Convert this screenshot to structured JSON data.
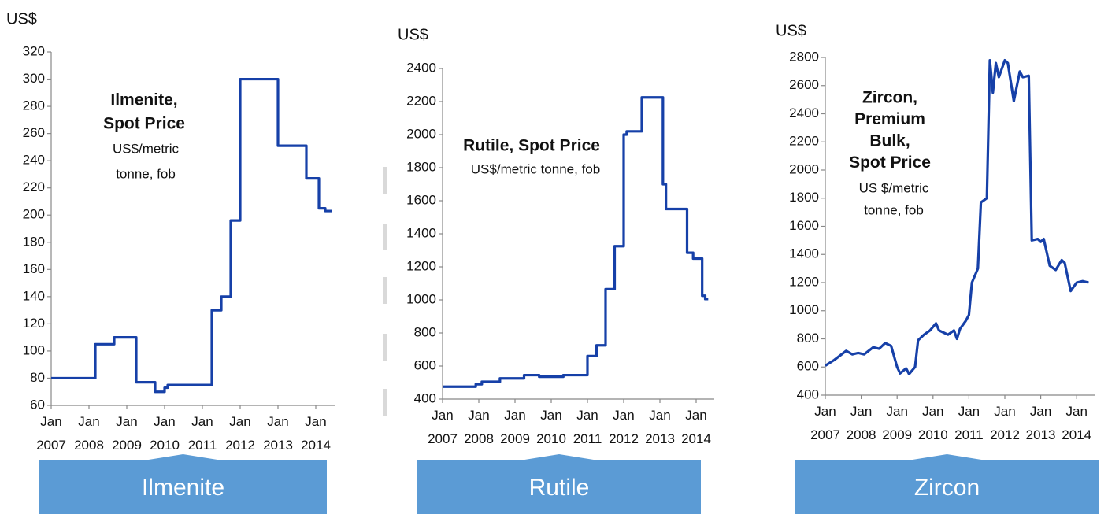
{
  "chart_data": [
    {
      "type": "line",
      "step": true,
      "unit_label": "US$",
      "annotation": {
        "title": [
          "Ilmenite,",
          "Spot Price"
        ],
        "subtitle": [
          "US$/metric",
          "tonne, fob"
        ]
      },
      "caption": "Ilmenite",
      "xlim": [
        "2007-01",
        "2014-07"
      ],
      "xticks": [
        {
          "value": "2007-01",
          "label": "Jan 2007"
        },
        {
          "value": "2008-01",
          "label": "Jan 2008"
        },
        {
          "value": "2009-01",
          "label": "Jan 2009"
        },
        {
          "value": "2010-01",
          "label": "Jan 2010"
        },
        {
          "value": "2011-01",
          "label": "Jan 2011"
        },
        {
          "value": "2012-01",
          "label": "Jan 2012"
        },
        {
          "value": "2013-01",
          "label": "Jan 2013"
        },
        {
          "value": "2014-01",
          "label": "Jan 2014"
        }
      ],
      "ylim": [
        60,
        320
      ],
      "yticks": [
        60,
        80,
        100,
        120,
        140,
        160,
        180,
        200,
        220,
        240,
        260,
        280,
        300,
        320
      ],
      "x": [
        "2007-01",
        "2008-03",
        "2008-09",
        "2009-04",
        "2009-10",
        "2010-01",
        "2010-02",
        "2011-04",
        "2011-07",
        "2011-10",
        "2012-01",
        "2013-01",
        "2013-10",
        "2014-02",
        "2014-04",
        "2014-06"
      ],
      "series": [
        {
          "name": "Ilmenite, Spot Price",
          "color": "#1640a8",
          "values": [
            80,
            105,
            110,
            77,
            70,
            73,
            75,
            130,
            140,
            196,
            300,
            251,
            227,
            205,
            203,
            203
          ]
        }
      ]
    },
    {
      "type": "line",
      "step": true,
      "unit_label": "US$",
      "annotation": {
        "title": [
          "Rutile, Spot Price"
        ],
        "subtitle": [
          "US$/metric tonne, fob"
        ]
      },
      "caption": "Rutile",
      "xlim": [
        "2007-01",
        "2014-07"
      ],
      "xticks": [
        {
          "value": "2007-01",
          "label": "Jan 2007"
        },
        {
          "value": "2008-01",
          "label": "Jan 2008"
        },
        {
          "value": "2009-01",
          "label": "Jan 2009"
        },
        {
          "value": "2010-01",
          "label": "Jan 2010"
        },
        {
          "value": "2011-01",
          "label": "Jan 2011"
        },
        {
          "value": "2012-01",
          "label": "Jan 2012"
        },
        {
          "value": "2013-01",
          "label": "Jan 2013"
        },
        {
          "value": "2014-01",
          "label": "Jan 2014"
        }
      ],
      "ylim": [
        400,
        2400
      ],
      "yticks": [
        400,
        600,
        800,
        1000,
        1200,
        1400,
        1600,
        1800,
        2000,
        2200,
        2400
      ],
      "x": [
        "2007-01",
        "2007-12",
        "2008-02",
        "2008-08",
        "2009-04",
        "2009-09",
        "2010-05",
        "2011-01",
        "2011-04",
        "2011-07",
        "2011-10",
        "2012-01",
        "2012-02",
        "2012-07",
        "2013-02",
        "2013-03",
        "2013-10",
        "2013-12",
        "2014-03",
        "2014-04",
        "2014-05"
      ],
      "series": [
        {
          "name": "Rutile, Spot Price",
          "color": "#1640a8",
          "values": [
            475,
            490,
            505,
            525,
            545,
            535,
            545,
            660,
            725,
            1065,
            1325,
            2000,
            2020,
            2225,
            1700,
            1550,
            1285,
            1250,
            1025,
            1005,
            1005
          ]
        }
      ]
    },
    {
      "type": "line",
      "step": false,
      "unit_label": "US$",
      "annotation": {
        "title": [
          "Zircon,",
          "Premium",
          "Bulk,",
          "Spot Price"
        ],
        "subtitle": [
          "US $/metric",
          "tonne, fob"
        ]
      },
      "caption": "Zircon",
      "xlim": [
        "2007-01",
        "2014-07"
      ],
      "xticks": [
        {
          "value": "2007-01",
          "label": "Jan 2007"
        },
        {
          "value": "2008-01",
          "label": "Jan 2008"
        },
        {
          "value": "2009-01",
          "label": "Jan 2009"
        },
        {
          "value": "2010-01",
          "label": "Jan 2010"
        },
        {
          "value": "2011-01",
          "label": "Jan 2011"
        },
        {
          "value": "2012-01",
          "label": "Jan 2012"
        },
        {
          "value": "2013-01",
          "label": "Jan 2013"
        },
        {
          "value": "2014-01",
          "label": "Jan 2014"
        }
      ],
      "ylim": [
        400,
        2800
      ],
      "yticks": [
        400,
        600,
        800,
        1000,
        1200,
        1400,
        1600,
        1800,
        2000,
        2200,
        2400,
        2600,
        2800
      ],
      "x": [
        "2007-01",
        "2007-04",
        "2007-08",
        "2007-10",
        "2007-12",
        "2008-02",
        "2008-05",
        "2008-07",
        "2008-09",
        "2008-11",
        "2009-01",
        "2009-02",
        "2009-04",
        "2009-05",
        "2009-07",
        "2009-08",
        "2009-10",
        "2009-12",
        "2010-02",
        "2010-03",
        "2010-06",
        "2010-08",
        "2010-09",
        "2010-10",
        "2010-12",
        "2011-01",
        "2011-02",
        "2011-04",
        "2011-05",
        "2011-07",
        "2011-08",
        "2011-09",
        "2011-10",
        "2011-11",
        "2012-01",
        "2012-02",
        "2012-04",
        "2012-06",
        "2012-07",
        "2012-09",
        "2012-10",
        "2012-12",
        "2013-01",
        "2013-02",
        "2013-04",
        "2013-06",
        "2013-08",
        "2013-09",
        "2013-11",
        "2014-01",
        "2014-03",
        "2014-05"
      ],
      "series": [
        {
          "name": "Zircon, Premium Bulk, Spot Price",
          "color": "#1640a8",
          "values": [
            610,
            650,
            715,
            690,
            700,
            690,
            740,
            730,
            770,
            750,
            600,
            555,
            590,
            550,
            600,
            790,
            830,
            860,
            910,
            860,
            830,
            860,
            800,
            870,
            930,
            970,
            1200,
            1300,
            1770,
            1800,
            2780,
            2550,
            2760,
            2660,
            2780,
            2760,
            2490,
            2700,
            2660,
            2670,
            1500,
            1510,
            1490,
            1510,
            1320,
            1290,
            1360,
            1340,
            1140,
            1200,
            1210,
            1200
          ]
        }
      ]
    }
  ]
}
